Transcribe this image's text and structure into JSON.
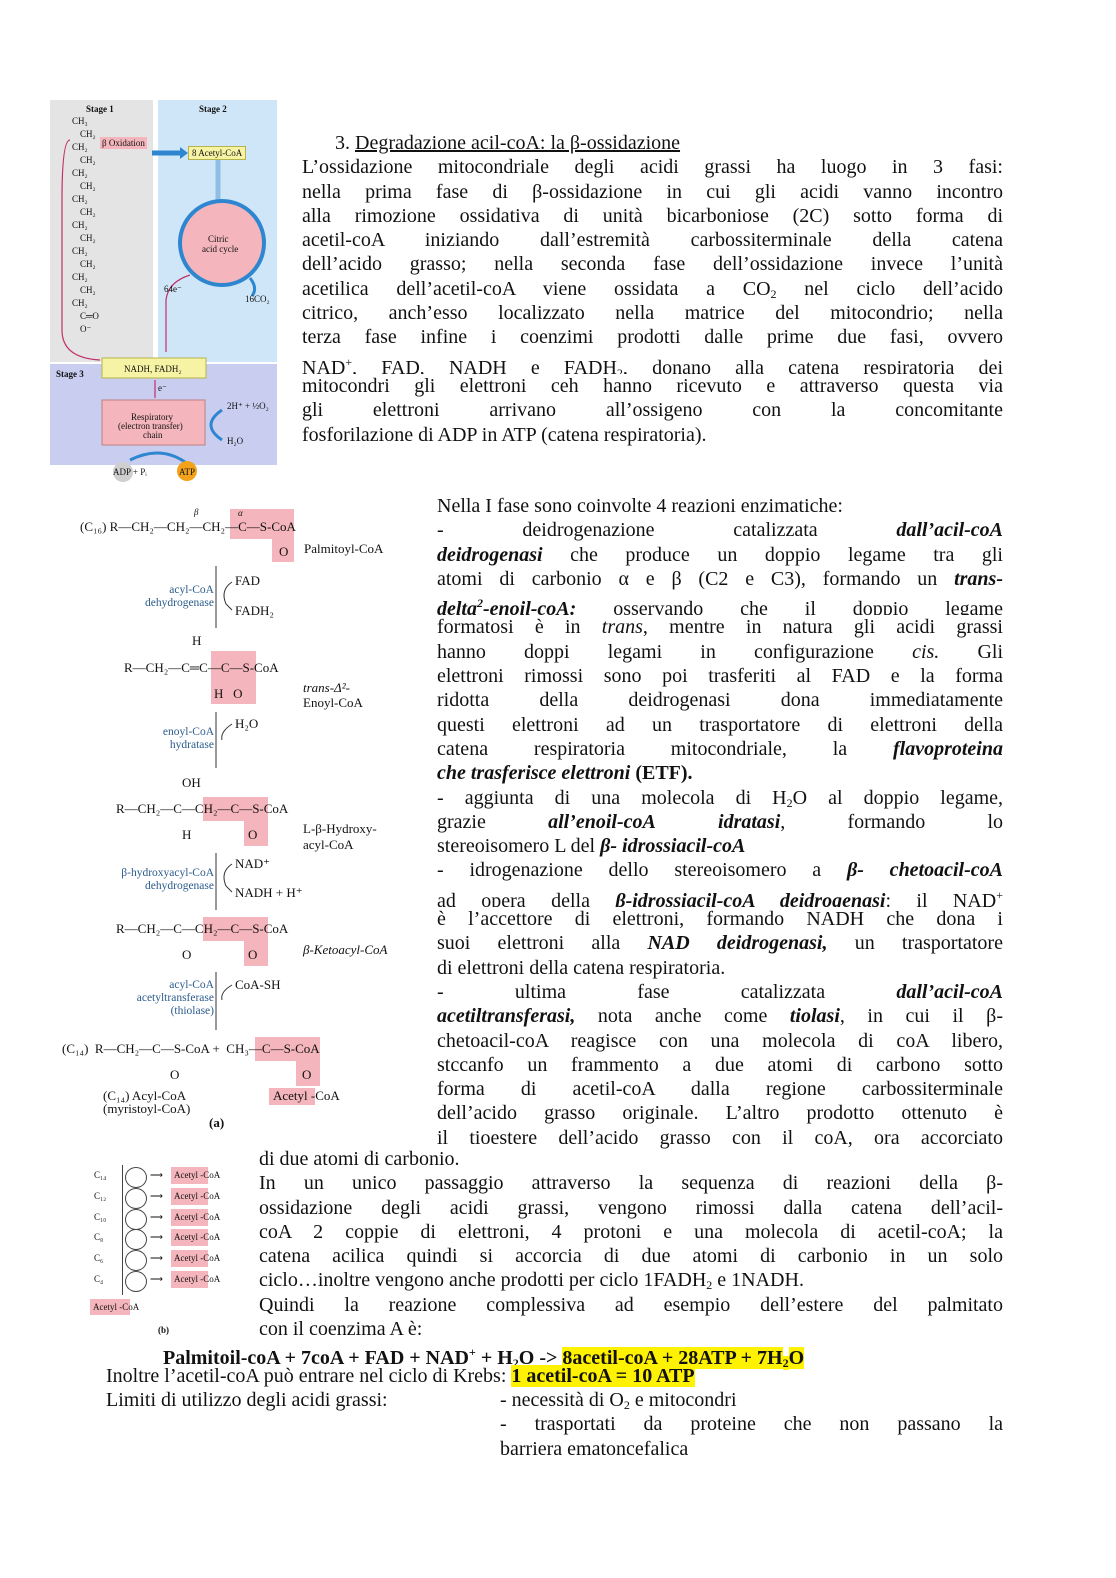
{
  "colors": {
    "highlight": "#fff200",
    "figure_pink": "#f4b6bc",
    "stage1_bg": "#e4e4e4",
    "stage2_bg": "#cfe6f8",
    "stage3_bg": "#c9cdf0",
    "enzyme_blue": "#2b5c8c",
    "atp_orange": "#f2a21b"
  },
  "blocks": {
    "intro": {
      "lines": [
        [
          [
            "3.  ",
            ""
          ],
          [
            "Degradazione acil-coA: la β-ossidazione",
            "u"
          ]
        ],
        [
          [
            "L’ossidazione mitocondriale degli acidi grassi ha luogo in 3 fasi:",
            ""
          ]
        ],
        [
          [
            "nella prima fase di β-ossidazione in cui gli acidi vanno incontro",
            ""
          ]
        ],
        [
          [
            "alla rimozione ossidativa di unità bicarboniose (2C) sotto forma di",
            ""
          ]
        ],
        [
          [
            "acetil-coA iniziando dall’estremità carbossiterminale della catena",
            ""
          ]
        ],
        [
          [
            "dell’acido grasso; nella seconda fase dell’ossidazione invece l’unità",
            ""
          ]
        ],
        [
          [
            "acetilica dell’acetil-coA viene ossidata a CO",
            ""
          ],
          [
            "2",
            "sub"
          ],
          [
            " nel ciclo dell’acido",
            ""
          ]
        ],
        [
          [
            "citrico, anch’esso localizzato nella matrice del mitocondrio; nella",
            ""
          ]
        ],
        [
          [
            "terza fase infine i coenzimi prodotti dalle prime due fasi, ovvero",
            ""
          ]
        ],
        [
          [
            "NAD",
            ""
          ],
          [
            "+",
            "sup"
          ],
          [
            ", FAD, NADH e FADH",
            ""
          ],
          [
            "2",
            "sub"
          ],
          [
            ", donano alla catena respiratoria dei",
            ""
          ]
        ],
        [
          [
            "mitocondri gli elettroni ceh hanno ricevuto e attraverso questa via",
            ""
          ]
        ],
        [
          [
            "gli elettroni arrivano all’ossigeno con la concomitante",
            ""
          ]
        ],
        [
          [
            "fosforilazione di ADP in ATP (catena respiratoria).",
            ""
          ]
        ]
      ]
    },
    "phase1": {
      "lines": [
        [
          [
            "Nella I fase sono coinvolte 4 reazioni enzimatiche:",
            ""
          ]
        ],
        [
          [
            "- deidrogenazione catalizzata ",
            ""
          ],
          [
            "dall’acil-coA",
            "b i"
          ]
        ],
        [
          [
            "deidrogenasi",
            "b i"
          ],
          [
            " che produce un doppio legame tra gli",
            ""
          ]
        ],
        [
          [
            "atomi di carbonio α e β (C2 e C3), formando un ",
            ""
          ],
          [
            "trans-",
            "b i"
          ]
        ],
        [
          [
            "delta",
            "b i"
          ],
          [
            "2",
            "b i sup"
          ],
          [
            "-enoil-coA:",
            "b i"
          ],
          [
            " osservando che il doppio legame",
            ""
          ]
        ],
        [
          [
            "formatosi è in ",
            ""
          ],
          [
            "trans",
            "i"
          ],
          [
            ", mentre in natura gli acidi grassi",
            ""
          ]
        ],
        [
          [
            "hanno doppi legami in configurazione ",
            ""
          ],
          [
            "cis.",
            "i"
          ],
          [
            " Gli",
            ""
          ]
        ],
        [
          [
            "elettroni rimossi sono poi trasferiti al FAD e la forma",
            ""
          ]
        ],
        [
          [
            "ridotta della deidrogenasi dona immediatamente",
            ""
          ]
        ],
        [
          [
            "questi elettroni ad un trasportatore di elettroni della",
            ""
          ]
        ],
        [
          [
            "catena respiratoria mitocondriale, la ",
            ""
          ],
          [
            "flavoproteina",
            "b i"
          ]
        ],
        [
          [
            "che trasferisce elettroni",
            "b i"
          ],
          [
            " (ETF).",
            "b"
          ]
        ],
        [
          [
            "- aggiunta di una molecola di H",
            ""
          ],
          [
            "2",
            "sub"
          ],
          [
            "O al doppio legame,",
            ""
          ]
        ],
        [
          [
            "grazie ",
            ""
          ],
          [
            "all’enoil-coA",
            "b i"
          ],
          [
            " ",
            ""
          ],
          [
            "idratasi",
            "b i"
          ],
          [
            ", formando lo",
            ""
          ]
        ],
        [
          [
            "stereoisomero L del ",
            ""
          ],
          [
            "β- idrossiacil-coA",
            "b i"
          ]
        ],
        [
          [
            "- idrogenazione dello stereoisomero a ",
            ""
          ],
          [
            "β- chetoacil-coA",
            "b i"
          ]
        ],
        [
          [
            "ad opera della ",
            ""
          ],
          [
            "β-idrossiacil-coA deidrogenasi",
            "b i"
          ],
          [
            ": il NAD",
            ""
          ],
          [
            "+",
            "sup"
          ]
        ],
        [
          [
            "è l’accettore di elettroni, formando NADH che dona i",
            ""
          ]
        ],
        [
          [
            "suoi elettroni alla ",
            ""
          ],
          [
            "NAD deidrogenasi,",
            "b i"
          ],
          [
            " un trasportatore",
            ""
          ]
        ],
        [
          [
            "di elettroni della catena respiratoria.",
            ""
          ]
        ],
        [
          [
            "- ultima fase catalizzata ",
            ""
          ],
          [
            "dall’acil-coA",
            "b i"
          ]
        ],
        [
          [
            "acetiltransferasi,",
            "b i"
          ],
          [
            " nota anche come ",
            ""
          ],
          [
            "tiolasi",
            "b i"
          ],
          [
            ", in cui il β-",
            ""
          ]
        ],
        [
          [
            "chetoacil-coA reagisce con una molecola di coA libero,",
            ""
          ]
        ],
        [
          [
            "stccanfo un frammento a due atomi di carbono sotto",
            ""
          ]
        ],
        [
          [
            "forma di acetil-coA dalla regione carbossiterminale",
            ""
          ]
        ],
        [
          [
            "dell’acido grasso originale. L’altro prodotto ottenuto è",
            ""
          ]
        ],
        [
          [
            "il tioestere dell’acido grasso con il coA, ora accorciato",
            ""
          ]
        ]
      ]
    },
    "cycle": {
      "lines": [
        [
          [
            "di due atomi di carbonio.",
            ""
          ]
        ],
        [
          [
            "In un unico passaggio attraverso la sequenza di reazioni della β-",
            ""
          ]
        ],
        [
          [
            "ossidazione degli acidi grassi, vengono rimossi dalla catena dell’acil-",
            ""
          ]
        ],
        [
          [
            "coA 2 coppie di elettroni, 4 protoni e una molecola di acetil-coA; la",
            ""
          ]
        ],
        [
          [
            "catena acilica quindi si accorcia di due atomi di carbonio in un solo",
            ""
          ]
        ],
        [
          [
            "ciclo…inoltre vengono anche prodotti per ciclo 1FADH",
            ""
          ],
          [
            "2",
            "sub"
          ],
          [
            " e 1NADH.",
            ""
          ]
        ],
        [
          [
            "Quindi la reazione complessiva ad esempio dell’estere del palmitato",
            ""
          ]
        ],
        [
          [
            "con il coenzima A è:",
            ""
          ]
        ]
      ]
    },
    "equation": {
      "lines": [
        [
          [
            "Palmitoil-coA + 7coA + FAD + NAD",
            "b"
          ],
          [
            "+",
            "b sup"
          ],
          [
            " + H",
            "b"
          ],
          [
            "2",
            "b sub"
          ],
          [
            "O -> ",
            "b"
          ],
          [
            "8acetil-coA + 28ATP + 7H",
            "b hl"
          ],
          [
            "2",
            "b hl sub"
          ],
          [
            "O",
            "b hl"
          ]
        ]
      ]
    },
    "krebs": {
      "lines": [
        [
          [
            "Inoltre l’acetil-coA può entrare nel ciclo di Krebs: ",
            ""
          ],
          [
            "1 acetil-coA = 10 ATP",
            "b hl"
          ]
        ],
        [
          [
            "Limiti di utilizzo degli acidi grassi:",
            ""
          ]
        ]
      ]
    },
    "limits": {
      "lines": [
        [
          [
            "- necessità di O",
            ""
          ],
          [
            "2",
            "sub"
          ],
          [
            " e mitocondri",
            ""
          ]
        ],
        [
          [
            "- trasportati da proteine che non passano la",
            ""
          ]
        ],
        [
          [
            "barriera ematoncefalica",
            ""
          ]
        ]
      ]
    }
  },
  "justify": {
    "intro": [
      1,
      2,
      3,
      4,
      5,
      6,
      7,
      8,
      9,
      10,
      11
    ],
    "phase1": [
      1,
      2,
      3,
      4,
      5,
      6,
      7,
      8,
      9,
      10,
      12,
      13,
      15,
      16,
      17,
      18,
      20,
      21,
      22,
      23,
      24,
      25,
      26
    ],
    "cycle": [
      1,
      2,
      3,
      4,
      6
    ],
    "equation": [],
    "krebs": [],
    "limits": [
      1
    ]
  },
  "figures": {
    "overview": {
      "stage1": "Stage 1",
      "stage2": "Stage 2",
      "stage3": "Stage 3",
      "chain": [
        "CH₃",
        "CH₂",
        "CH₂",
        "CH₂",
        "CH₂",
        "CH₂",
        "CH₂",
        "CH₂",
        "CH₂",
        "CH₂",
        "CH₂",
        "CH₂",
        "CH₂",
        "CH₂",
        "CH₂",
        "C═O",
        "O⁻"
      ],
      "beta_ox": "β Oxidation",
      "acetyl": "8 Acetyl-CoA",
      "citric1": "Citric",
      "citric2": "acid cycle",
      "electrons64": "64e⁻",
      "co2": "16CO₂",
      "nadh": "NADH, FADH₂",
      "e": "e⁻",
      "resp1": "Respiratory",
      "resp2": "(electron transfer)",
      "resp3": "chain",
      "o2": "2H⁺ + ½O₂",
      "h2o": "H₂O",
      "adp": "ADP + Pᵢ",
      "atp": "ATP"
    },
    "reactions": {
      "beta": "β",
      "alpha": "α",
      "palm": "(C₁₆)  R—CH₂—CH₂—CH₂—C—S-CoA",
      "palm_o": "O",
      "palm_name": "Palmitoyl-CoA",
      "enz1a": "acyl-CoA",
      "enz1b": "dehydrogenase",
      "fad": "FAD",
      "fadh2": "FADH₂",
      "enoyl_h": "H",
      "enoyl": "R—CH₂—C═C—C—S-CoA",
      "enoyl_ho": "H   O",
      "enoyl_n1": "trans-Δ²-",
      "enoyl_n2": "Enoyl-CoA",
      "enz2a": "enoyl-CoA",
      "enz2b": "hydratase",
      "h2o": "H₂O",
      "hyd_oh": "OH",
      "hyd": "R—CH₂—C—CH₂—C—S-CoA",
      "hyd_h": "H",
      "hyd_o": "O",
      "hyd_n1": "L-β-Hydroxy-",
      "hyd_n2": "acyl-CoA",
      "enz3a": "β-hydroxyacyl-CoA",
      "enz3b": "dehydrogenase",
      "nad": "NAD⁺",
      "nadh": "NADH + H⁺",
      "keto": "R—CH₂—C—CH₂—C—S-CoA",
      "keto_o1": "O",
      "keto_o2": "O",
      "keto_n": "β-Ketoacyl-CoA",
      "enz4a": "acyl-CoA",
      "enz4b": "acetyltransferase",
      "enz4c": "(thiolase)",
      "coash": "CoA-SH",
      "prod": "(C₁₄)  R—CH₂—C—S-CoA +  CH₃—C—S-CoA",
      "prod_o1": "O",
      "prod_o2": "O",
      "prod_n1": "(C₁₄) Acyl-CoA",
      "prod_n2": "(myristoyl-CoA)",
      "acetyl_n": "Acetyl -CoA",
      "panel": "(a)"
    },
    "spiral": {
      "carbons": [
        "C₁₄",
        "C₁₂",
        "C₁₀",
        "C₈",
        "C₆",
        "C₄"
      ],
      "product": "Acetyl -CoA",
      "final": "Acetyl -CoA",
      "panel": "(b)"
    }
  }
}
